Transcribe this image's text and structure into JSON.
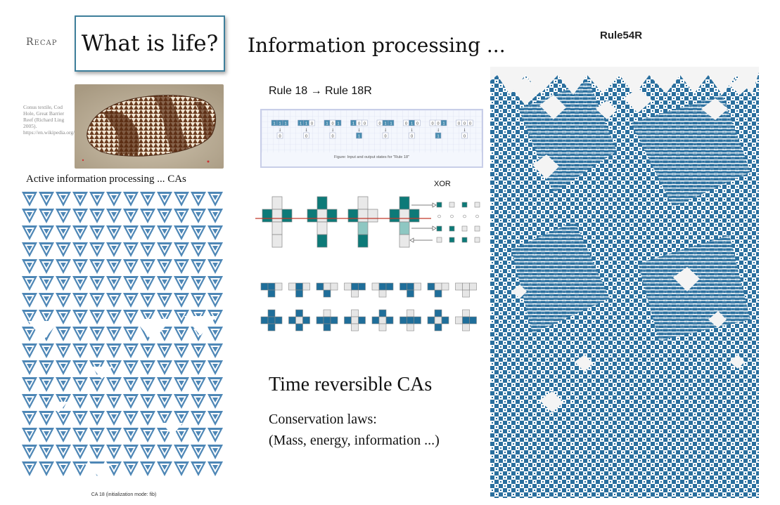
{
  "slide": {
    "recap_label": "Recap",
    "title": "What is life?",
    "heading": "Information processing ...",
    "image_caption": "Conus textile, Cod Hole, Great Barrier Reef (Richard Ling 2005). https://en.wikipedia.org/wiki/Conus_textile",
    "active_label": "Active information processing ... CAs",
    "ca18_caption": "CA 18 (initialization mode: fib)",
    "rule18_title": "Rule 18 → Rule 18R",
    "rule18_figure_caption": "Figure: Input and output states for \"Rule 18\"",
    "rule18_states": [
      {
        "in": "1 1 1",
        "out": "0"
      },
      {
        "in": "1 1 0",
        "out": "0"
      },
      {
        "in": "1 0 1",
        "out": "0"
      },
      {
        "in": "1 0 0",
        "out": "1"
      },
      {
        "in": "0 1 1",
        "out": "0"
      },
      {
        "in": "0 1 0",
        "out": "0"
      },
      {
        "in": "0 0 1",
        "out": "1"
      },
      {
        "in": "0 0 0",
        "out": "0"
      }
    ],
    "xor_label": "XOR",
    "time_reversible": "Time reversible CAs",
    "conservation_line1": "Conservation laws:",
    "conservation_line2": "(Mass, energy, information ...)",
    "rule54_title": "Rule54R"
  },
  "colors": {
    "title_border": "#3e7f9b",
    "ca_blue": "#4e87b6",
    "teal": "#0d7a78",
    "rule54_blue": "#2a6f9e"
  }
}
